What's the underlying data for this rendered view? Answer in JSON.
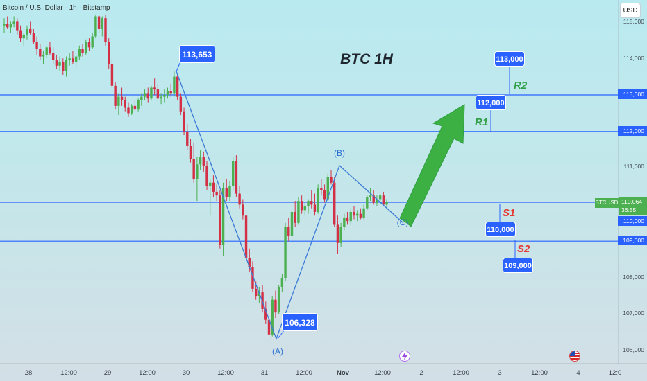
{
  "header": {
    "symbol": "Bitcoin / U.S. Dollar · 1h · Bitstamp",
    "currency_button": "USD"
  },
  "annotations": {
    "title": "BTC 1H",
    "callouts": {
      "high": "113,653",
      "low": "106,328",
      "r2": "113,000",
      "r1": "112,000",
      "s1": "110,000",
      "s2": "109,000"
    },
    "levels": {
      "r2": "R2",
      "r1": "R1",
      "s1": "S1",
      "s2": "S2"
    },
    "wave_labels": {
      "a": "(A)",
      "b": "(B)",
      "c": "(C)"
    }
  },
  "price_axis": {
    "ticks": [
      "115,000",
      "114,000",
      "113,000",
      "112,000",
      "111,000",
      "110,000",
      "109,000",
      "108,000",
      "107,000",
      "106,000"
    ],
    "current_symbol": "BTCUSD",
    "current_price": "110,064",
    "countdown": "36:55"
  },
  "time_axis": {
    "labels": [
      "28",
      "12:00",
      "29",
      "12:00",
      "30",
      "12:00",
      "31",
      "12:00",
      "Nov",
      "12:00",
      "2",
      "12:00",
      "3",
      "12:00",
      "4",
      "12:0"
    ]
  },
  "colors": {
    "up": "#4caf50",
    "down": "#d32f45",
    "line": "#2962ff",
    "wave": "#3b7bd6",
    "arrow": "#3db043",
    "background": "#c2e8ec"
  },
  "icons": [
    "lightning-icon",
    "us-flag-icon"
  ],
  "chart_data": {
    "type": "candlestick",
    "title": "BTC 1H",
    "xlabel": "",
    "ylabel": "",
    "ylim": [
      105900,
      115200
    ],
    "x_start": "Oct 27 21:00",
    "interval": "1h",
    "candles": [
      [
        114900,
        115100,
        114700,
        114950
      ],
      [
        114950,
        115150,
        114800,
        114850
      ],
      [
        114850,
        115000,
        114700,
        114950
      ],
      [
        114950,
        115150,
        114850,
        115000
      ],
      [
        115000,
        115100,
        114650,
        114750
      ],
      [
        114750,
        114900,
        114450,
        114550
      ],
      [
        114550,
        114700,
        114350,
        114650
      ],
      [
        114650,
        114900,
        114500,
        114800
      ],
      [
        114800,
        115000,
        114650,
        114700
      ],
      [
        114700,
        114800,
        114400,
        114450
      ],
      [
        114450,
        114600,
        114100,
        114250
      ],
      [
        114250,
        114400,
        113950,
        114050
      ],
      [
        114050,
        114200,
        113850,
        114100
      ],
      [
        114100,
        114350,
        114000,
        114300
      ],
      [
        114300,
        114450,
        114100,
        114150
      ],
      [
        114150,
        114300,
        113850,
        113950
      ],
      [
        113950,
        114100,
        113700,
        113800
      ],
      [
        113800,
        114050,
        113650,
        113900
      ],
      [
        113900,
        114000,
        113550,
        113650
      ],
      [
        113650,
        114050,
        113500,
        113950
      ],
      [
        113950,
        114150,
        113800,
        114000
      ],
      [
        114000,
        114200,
        113850,
        113900
      ],
      [
        113900,
        114100,
        113750,
        114050
      ],
      [
        114050,
        114350,
        113950,
        114250
      ],
      [
        114250,
        114400,
        114050,
        114150
      ],
      [
        114150,
        114500,
        114100,
        114450
      ],
      [
        114450,
        114550,
        114200,
        114300
      ],
      [
        114300,
        114700,
        114250,
        114600
      ],
      [
        114600,
        115200,
        114550,
        115150
      ],
      [
        115150,
        115200,
        114700,
        114800
      ],
      [
        114800,
        115150,
        114600,
        115100
      ],
      [
        115100,
        115200,
        114350,
        114450
      ],
      [
        114450,
        114550,
        113700,
        113850
      ],
      [
        113850,
        114000,
        113150,
        113250
      ],
      [
        113250,
        113350,
        112600,
        112700
      ],
      [
        112700,
        113050,
        112450,
        112950
      ],
      [
        112950,
        113200,
        112700,
        112850
      ],
      [
        112850,
        112950,
        112550,
        112650
      ],
      [
        112650,
        112800,
        112400,
        112500
      ],
      [
        112500,
        112750,
        112450,
        112700
      ],
      [
        112700,
        112850,
        112550,
        112600
      ],
      [
        112600,
        112900,
        112550,
        112850
      ],
      [
        112850,
        113050,
        112700,
        112950
      ],
      [
        112950,
        113150,
        112850,
        113050
      ],
      [
        113050,
        113200,
        112800,
        112900
      ],
      [
        112900,
        113250,
        112850,
        113200
      ],
      [
        113200,
        113450,
        113000,
        113150
      ],
      [
        113150,
        113300,
        112850,
        112900
      ],
      [
        112900,
        113050,
        112750,
        112950
      ],
      [
        112950,
        113150,
        112800,
        113000
      ],
      [
        113000,
        113200,
        112900,
        113100
      ],
      [
        113100,
        113300,
        112950,
        113050
      ],
      [
        113050,
        113653,
        112950,
        113500
      ],
      [
        113500,
        113600,
        112850,
        112950
      ],
      [
        112950,
        113050,
        112450,
        112550
      ],
      [
        112550,
        112650,
        111900,
        112000
      ],
      [
        112000,
        112200,
        111500,
        111600
      ],
      [
        111600,
        111800,
        111150,
        111250
      ],
      [
        111250,
        111700,
        110600,
        110700
      ],
      [
        110700,
        111300,
        110100,
        111100
      ],
      [
        111100,
        111500,
        110950,
        111300
      ],
      [
        111300,
        111450,
        110900,
        111050
      ],
      [
        111050,
        111200,
        110400,
        110500
      ],
      [
        110500,
        110700,
        109700,
        110600
      ],
      [
        110600,
        110800,
        110200,
        110350
      ],
      [
        110350,
        110550,
        110100,
        110250
      ],
      [
        110250,
        110400,
        108800,
        108900
      ],
      [
        108900,
        110600,
        108600,
        110450
      ],
      [
        110450,
        110700,
        110100,
        110200
      ],
      [
        110200,
        110650,
        110100,
        110500
      ],
      [
        110500,
        111300,
        110400,
        111200
      ],
      [
        111200,
        111350,
        110200,
        110300
      ],
      [
        110300,
        110500,
        109900,
        110000
      ],
      [
        110000,
        110150,
        109600,
        109700
      ],
      [
        109700,
        109850,
        108450,
        108550
      ],
      [
        108550,
        108800,
        108150,
        108300
      ],
      [
        108300,
        108450,
        107600,
        107700
      ],
      [
        107700,
        107900,
        107400,
        107500
      ],
      [
        107500,
        107750,
        107300,
        107600
      ],
      [
        107600,
        107800,
        107050,
        107150
      ],
      [
        107150,
        107350,
        106750,
        106850
      ],
      [
        106850,
        107000,
        106328,
        106450
      ],
      [
        106450,
        107500,
        106400,
        107400
      ],
      [
        107400,
        107650,
        106900,
        107050
      ],
      [
        107050,
        107800,
        107000,
        107750
      ],
      [
        107750,
        108100,
        107600,
        108000
      ],
      [
        108000,
        109500,
        107900,
        109400
      ],
      [
        109400,
        109650,
        109000,
        109150
      ],
      [
        109150,
        109900,
        109100,
        109800
      ],
      [
        109800,
        110100,
        109400,
        109500
      ],
      [
        109500,
        110200,
        109450,
        110100
      ],
      [
        110100,
        110250,
        109750,
        109850
      ],
      [
        109850,
        110050,
        109700,
        109950
      ],
      [
        109950,
        110150,
        109750,
        110100
      ],
      [
        110100,
        110400,
        109900,
        110000
      ],
      [
        110000,
        110300,
        109700,
        109800
      ],
      [
        109800,
        110550,
        109750,
        110450
      ],
      [
        110450,
        110700,
        110250,
        110400
      ],
      [
        110400,
        110550,
        110050,
        110150
      ],
      [
        110150,
        110850,
        110100,
        110750
      ],
      [
        110750,
        110950,
        110550,
        110600
      ],
      [
        110600,
        110750,
        109400,
        109450
      ],
      [
        109450,
        109700,
        108650,
        108950
      ],
      [
        108950,
        109500,
        108850,
        109400
      ],
      [
        109400,
        109750,
        109300,
        109650
      ],
      [
        109650,
        109800,
        109450,
        109550
      ],
      [
        109550,
        109900,
        109450,
        109800
      ],
      [
        109800,
        109950,
        109600,
        109700
      ],
      [
        109700,
        109850,
        109550,
        109750
      ],
      [
        109750,
        109900,
        109600,
        109650
      ],
      [
        109650,
        110000,
        109600,
        109900
      ],
      [
        109900,
        110250,
        109850,
        110200
      ],
      [
        110200,
        110450,
        110100,
        110250
      ],
      [
        110250,
        110400,
        110000,
        110050
      ],
      [
        110050,
        110250,
        109950,
        110150
      ],
      [
        110150,
        110300,
        110000,
        110250
      ],
      [
        110250,
        110350,
        109950,
        110000
      ],
      [
        110000,
        110150,
        109900,
        110064
      ]
    ]
  }
}
